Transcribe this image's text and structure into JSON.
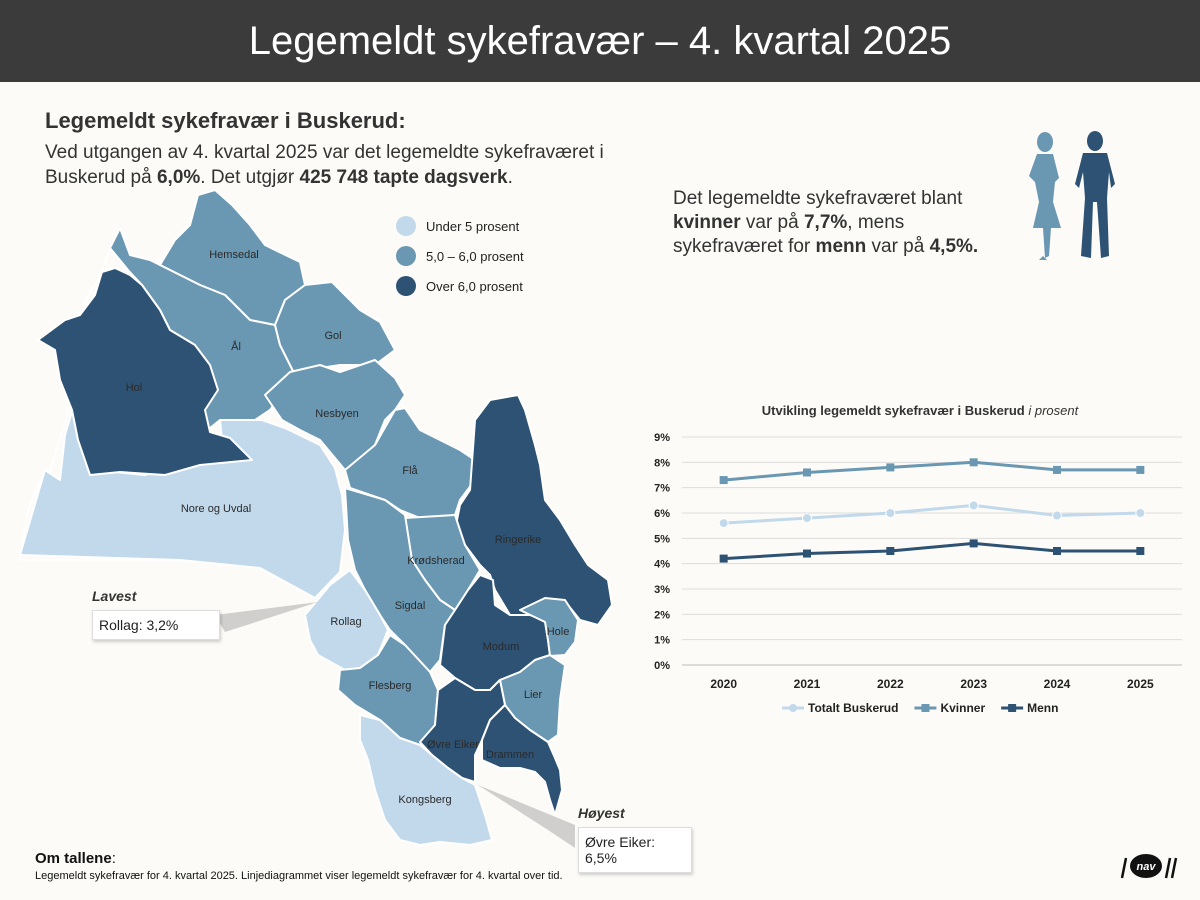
{
  "header": {
    "title": "Legemeldt sykefravær – 4. kvartal 2025"
  },
  "intro": {
    "heading": "Legemeldt sykefravær i Buskerud:",
    "line_a": "Ved utgangen av 4. kvartal 2025 var det legemeldte sykefraværet i Buskerud på ",
    "pct": "6,0%",
    "line_b": ". Det utgjør ",
    "days": "425 748 tapte dagsverk",
    "line_c": "."
  },
  "gender_text": {
    "a": "Det legemeldte sykefraværet blant ",
    "women": "kvinner",
    "b": " var på ",
    "women_pct": "7,7%",
    "c": ", mens sykefraværet for ",
    "men": "menn",
    "d": " var på ",
    "men_pct": "4,5%."
  },
  "map_legend": [
    {
      "label": "Under 5 prosent",
      "color": "#c2d9ec"
    },
    {
      "label": "5,0 – 6,0 prosent",
      "color": "#6a97b2"
    },
    {
      "label": "Over 6,0 prosent",
      "color": "#2d5274"
    }
  ],
  "municipalities": {
    "hemsedal": "Hemsedal",
    "al": "Ål",
    "gol": "Gol",
    "hol": "Hol",
    "nesbyen": "Nesbyen",
    "fla": "Flå",
    "nore": "Nore og Uvdal",
    "ringerike": "Ringerike",
    "krodsherad": "Krødsherad",
    "sigdal": "Sigdal",
    "rollag": "Rollag",
    "modum": "Modum",
    "hole": "Hole",
    "flesberg": "Flesberg",
    "lier": "Lier",
    "ovre_eiker": "Øvre Eiker",
    "drammen": "Drammen",
    "kongsberg": "Kongsberg"
  },
  "callouts": {
    "lowest": {
      "label": "Lavest",
      "value": "Rollag: 3,2%"
    },
    "highest": {
      "label": "Høyest",
      "value": "Øvre Eiker: 6,5%"
    }
  },
  "notes": {
    "title": "Om tallene",
    "colon": ":",
    "text": "Legemeldt sykefravær for 4. kvartal 2025. Linjediagrammet viser legemeldt sykefravær for 4. kvartal over tid."
  },
  "logo": {
    "text": "nav"
  },
  "colors": {
    "light": "#c2d9ec",
    "mid": "#6a97b2",
    "dark": "#2d5274"
  },
  "chart_data": {
    "type": "line",
    "title": "Utvikling legemeldt sykefravær i Buskerud",
    "title_suffix": "i prosent",
    "categories": [
      "2020",
      "2021",
      "2022",
      "2023",
      "2024",
      "2025"
    ],
    "ylim": [
      0,
      9
    ],
    "y_ticks": [
      "0%",
      "1%",
      "2%",
      "3%",
      "4%",
      "5%",
      "6%",
      "7%",
      "8%",
      "9%"
    ],
    "grid": true,
    "legend_position": "bottom",
    "series": [
      {
        "name": "Totalt Buskerud",
        "values": [
          5.6,
          5.8,
          6.0,
          6.3,
          5.9,
          6.0
        ],
        "color": "#c2d9ec",
        "marker": "circle"
      },
      {
        "name": "Kvinner",
        "values": [
          7.3,
          7.6,
          7.8,
          8.0,
          7.7,
          7.7
        ],
        "color": "#6a97b2",
        "marker": "square"
      },
      {
        "name": "Menn",
        "values": [
          4.2,
          4.4,
          4.5,
          4.8,
          4.5,
          4.5
        ],
        "color": "#2d5274",
        "marker": "square"
      }
    ]
  }
}
